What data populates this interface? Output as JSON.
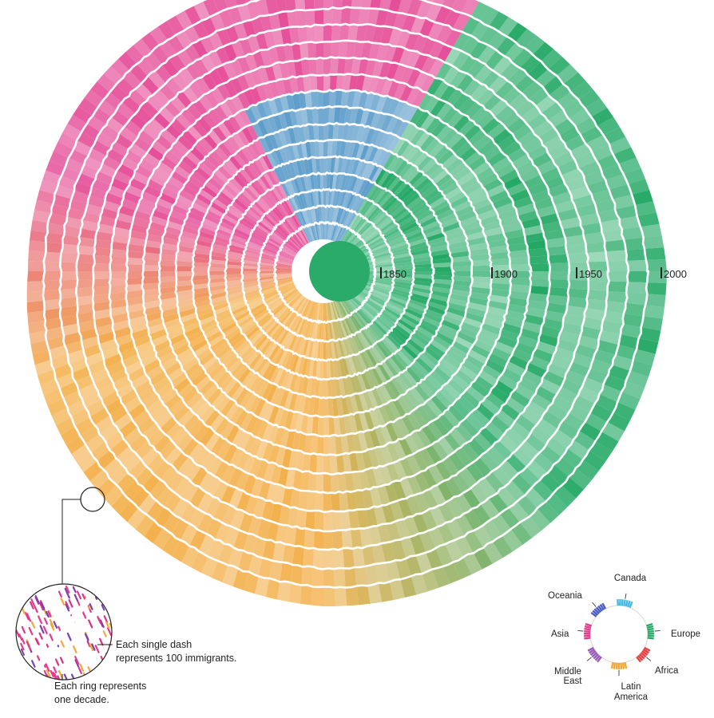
{
  "chart_data": {
    "type": "ring-chart",
    "ring_unit": "decade",
    "decade_markers": [
      "1850",
      "1900",
      "1950",
      "2000"
    ],
    "notes": {
      "dash": [
        "Each single dash",
        "represents 100 immigrants."
      ],
      "ring": [
        "Each ring represents",
        "one decade."
      ]
    },
    "legend": [
      {
        "name": "Canada",
        "color": "#44b9e4"
      },
      {
        "name": "Europe",
        "color": "#2bab6a"
      },
      {
        "name": "Africa",
        "color": "#e8403c"
      },
      {
        "name": "Latin America",
        "color": "#f2a93b"
      },
      {
        "name": "Middle East",
        "color": "#9b59b6"
      },
      {
        "name": "Asia",
        "color": "#e23b8d"
      },
      {
        "name": "Oceania",
        "color": "#4c5fc0"
      }
    ],
    "colors": {
      "europe": "#2bab6a",
      "europe_light": "#8fd3b0",
      "uk_ireland": "#4b92c4",
      "latin_america": "#f2a93b",
      "asia": "#e23b8d"
    }
  }
}
